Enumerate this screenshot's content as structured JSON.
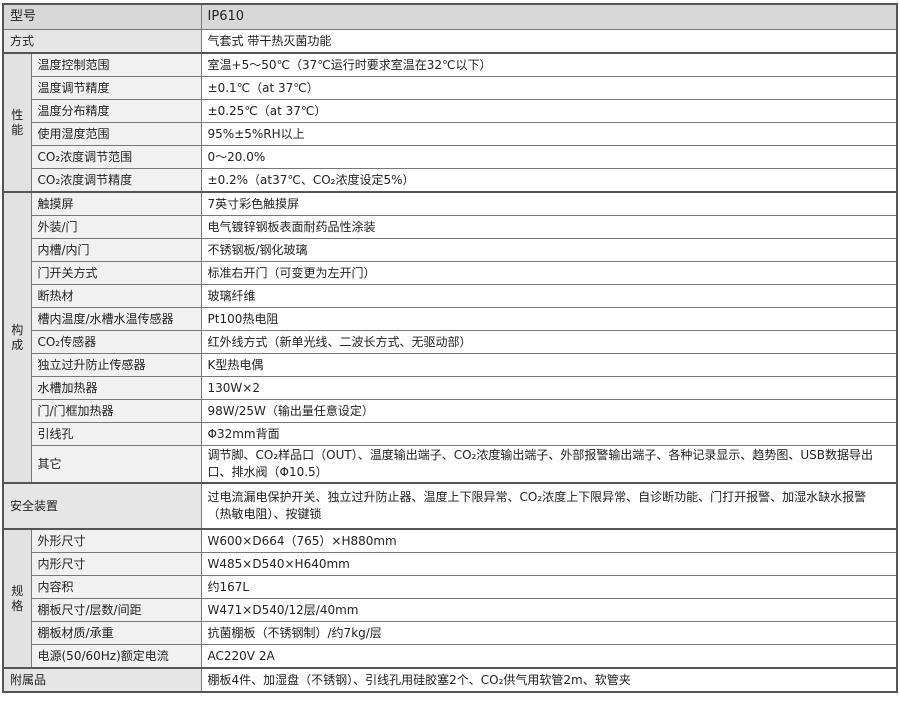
{
  "model": {
    "label": "型号",
    "value": "IP610"
  },
  "method": {
    "label": "方式",
    "value": "气套式 带干热灭菌功能"
  },
  "performance": {
    "category": "性能",
    "rows": [
      {
        "label": "温度控制范围",
        "value": "室温+5～50℃（37℃运行时要求室温在32℃以下）"
      },
      {
        "label": "温度调节精度",
        "value": "±0.1℃（at 37℃）"
      },
      {
        "label": "温度分布精度",
        "value": "±0.25℃（at 37℃）"
      },
      {
        "label": "使用湿度范围",
        "value": "95%±5%RH以上"
      },
      {
        "label": "CO₂浓度调节范围",
        "value": "0～20.0%"
      },
      {
        "label": "CO₂浓度调节精度",
        "value": "±0.2%（at37℃、CO₂浓度设定5%）"
      }
    ]
  },
  "construction": {
    "category": "构成",
    "rows": [
      {
        "label": "触摸屏",
        "value": "7英寸彩色触摸屏"
      },
      {
        "label": "外装/门",
        "value": "电气镀锌钢板表面耐药品性涂装"
      },
      {
        "label": "内槽/内门",
        "value": "不锈钢板/钢化玻璃"
      },
      {
        "label": "门开关方式",
        "value": "标准右开门（可变更为左开门）"
      },
      {
        "label": "断热材",
        "value": "玻璃纤维"
      },
      {
        "label": "槽内温度/水槽水温传感器",
        "value": "Pt100热电阻"
      },
      {
        "label": "CO₂传感器",
        "value": "红外线方式（新单光线、二波长方式、无驱动部）"
      },
      {
        "label": "独立过升防止传感器",
        "value": "K型热电偶"
      },
      {
        "label": "水槽加热器",
        "value": "130W×2"
      },
      {
        "label": "门/门框加热器",
        "value": "98W/25W（输出量任意设定）"
      },
      {
        "label": "引线孔",
        "value": "Φ32mm背面"
      },
      {
        "label": "其它",
        "value": "调节脚、CO₂样品口（OUT）、温度输出端子、CO₂浓度输出端子、外部报警输出端子、各种记录显示、趋势图、USB数据导出口、排水阀（Φ10.5）"
      }
    ]
  },
  "safety": {
    "label": "安全装置",
    "value": "过电流漏电保护开关、独立过升防止器、温度上下限异常、CO₂浓度上下限异常、自诊断功能、门打开报警、加湿水缺水报警（热敏电阻）、按键锁"
  },
  "specs": {
    "category": "规格",
    "rows": [
      {
        "label": "外形尺寸",
        "value": "W600×D664（765）×H880mm"
      },
      {
        "label": "内形尺寸",
        "value": "W485×D540×H640mm"
      },
      {
        "label": "内容积",
        "value": "约167L"
      },
      {
        "label": "棚板尺寸/层数/间距",
        "value": "W471×D540/12层/40mm"
      },
      {
        "label": "棚板材质/承重",
        "value": "抗菌棚板（不锈钢制）/约7kg/层"
      },
      {
        "label": "电源(50/60Hz)额定电流",
        "value": "AC220V 2A"
      }
    ]
  },
  "accessories": {
    "label": "附属品",
    "value": "棚板4件、加湿盘（不锈钢）、引线孔用硅胶塞2个、CO₂供气用软管2m、软管夹"
  }
}
